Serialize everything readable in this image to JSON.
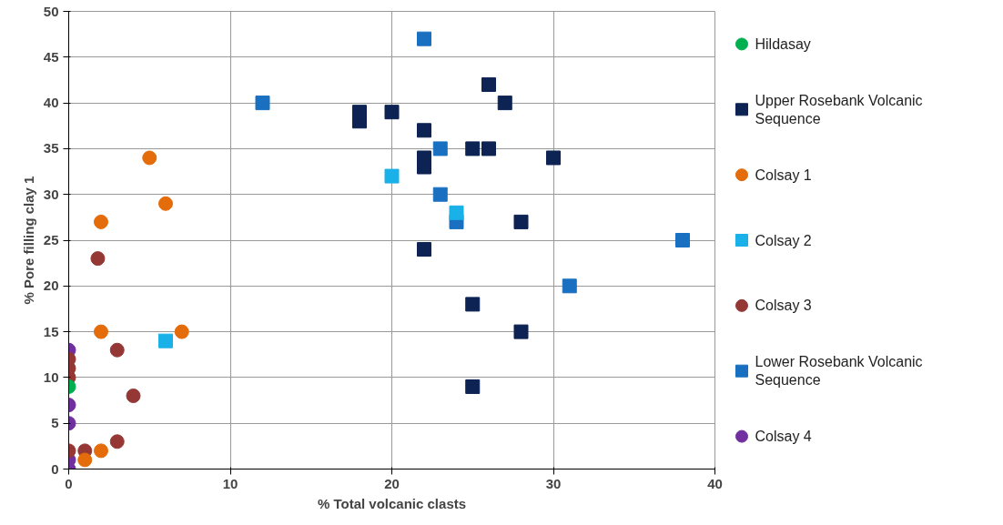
{
  "chart_data": {
    "type": "scatter",
    "xlabel": "% Total volcanic clasts",
    "ylabel": "% Pore filling clay 1",
    "xlim": [
      0,
      40
    ],
    "ylim": [
      0,
      50
    ],
    "xticks": [
      0,
      10,
      20,
      30,
      40
    ],
    "yticks": [
      0,
      5,
      10,
      15,
      20,
      25,
      30,
      35,
      40,
      45,
      50
    ],
    "grid": true,
    "legend": "right",
    "series": [
      {
        "name": "Hildasay",
        "color": "#00b050",
        "marker": "circle",
        "x": [
          0
        ],
        "values": [
          9
        ]
      },
      {
        "name": "Upper Rosebank Volcanic Sequence",
        "color": "#0d2353",
        "marker": "square",
        "x": [
          18,
          18,
          20,
          22,
          22,
          22,
          22,
          25,
          26,
          26,
          27,
          30,
          28,
          25,
          28,
          25
        ],
        "values": [
          38,
          39,
          39,
          37,
          34,
          33,
          24,
          35,
          35,
          42,
          40,
          34,
          27,
          18,
          15,
          9
        ]
      },
      {
        "name": "Colsay 1",
        "color": "#e46c0a",
        "marker": "circle",
        "x": [
          5,
          6,
          2,
          2,
          7,
          2,
          1
        ],
        "values": [
          34,
          29,
          27,
          15,
          15,
          2,
          1
        ]
      },
      {
        "name": "Colsay 2",
        "color": "#1ab0e8",
        "marker": "square",
        "x": [
          20,
          24,
          6
        ],
        "values": [
          32,
          28,
          14
        ]
      },
      {
        "name": "Colsay 3",
        "color": "#953735",
        "marker": "circle",
        "x": [
          1.8,
          3,
          4,
          3,
          1,
          0,
          0,
          0,
          0
        ],
        "values": [
          23,
          13,
          8,
          3,
          2,
          2,
          10,
          11,
          12
        ]
      },
      {
        "name": "Lower Rosebank Volcanic Sequence",
        "color": "#1a70c0",
        "marker": "square",
        "x": [
          22,
          12,
          23,
          23,
          24,
          38,
          31
        ],
        "values": [
          47,
          40,
          35,
          30,
          27,
          25,
          20
        ]
      },
      {
        "name": "Colsay 4",
        "color": "#7030a0",
        "marker": "circle",
        "x": [
          0,
          0,
          0,
          0,
          0
        ],
        "values": [
          13,
          7,
          5,
          1,
          0
        ]
      }
    ]
  }
}
